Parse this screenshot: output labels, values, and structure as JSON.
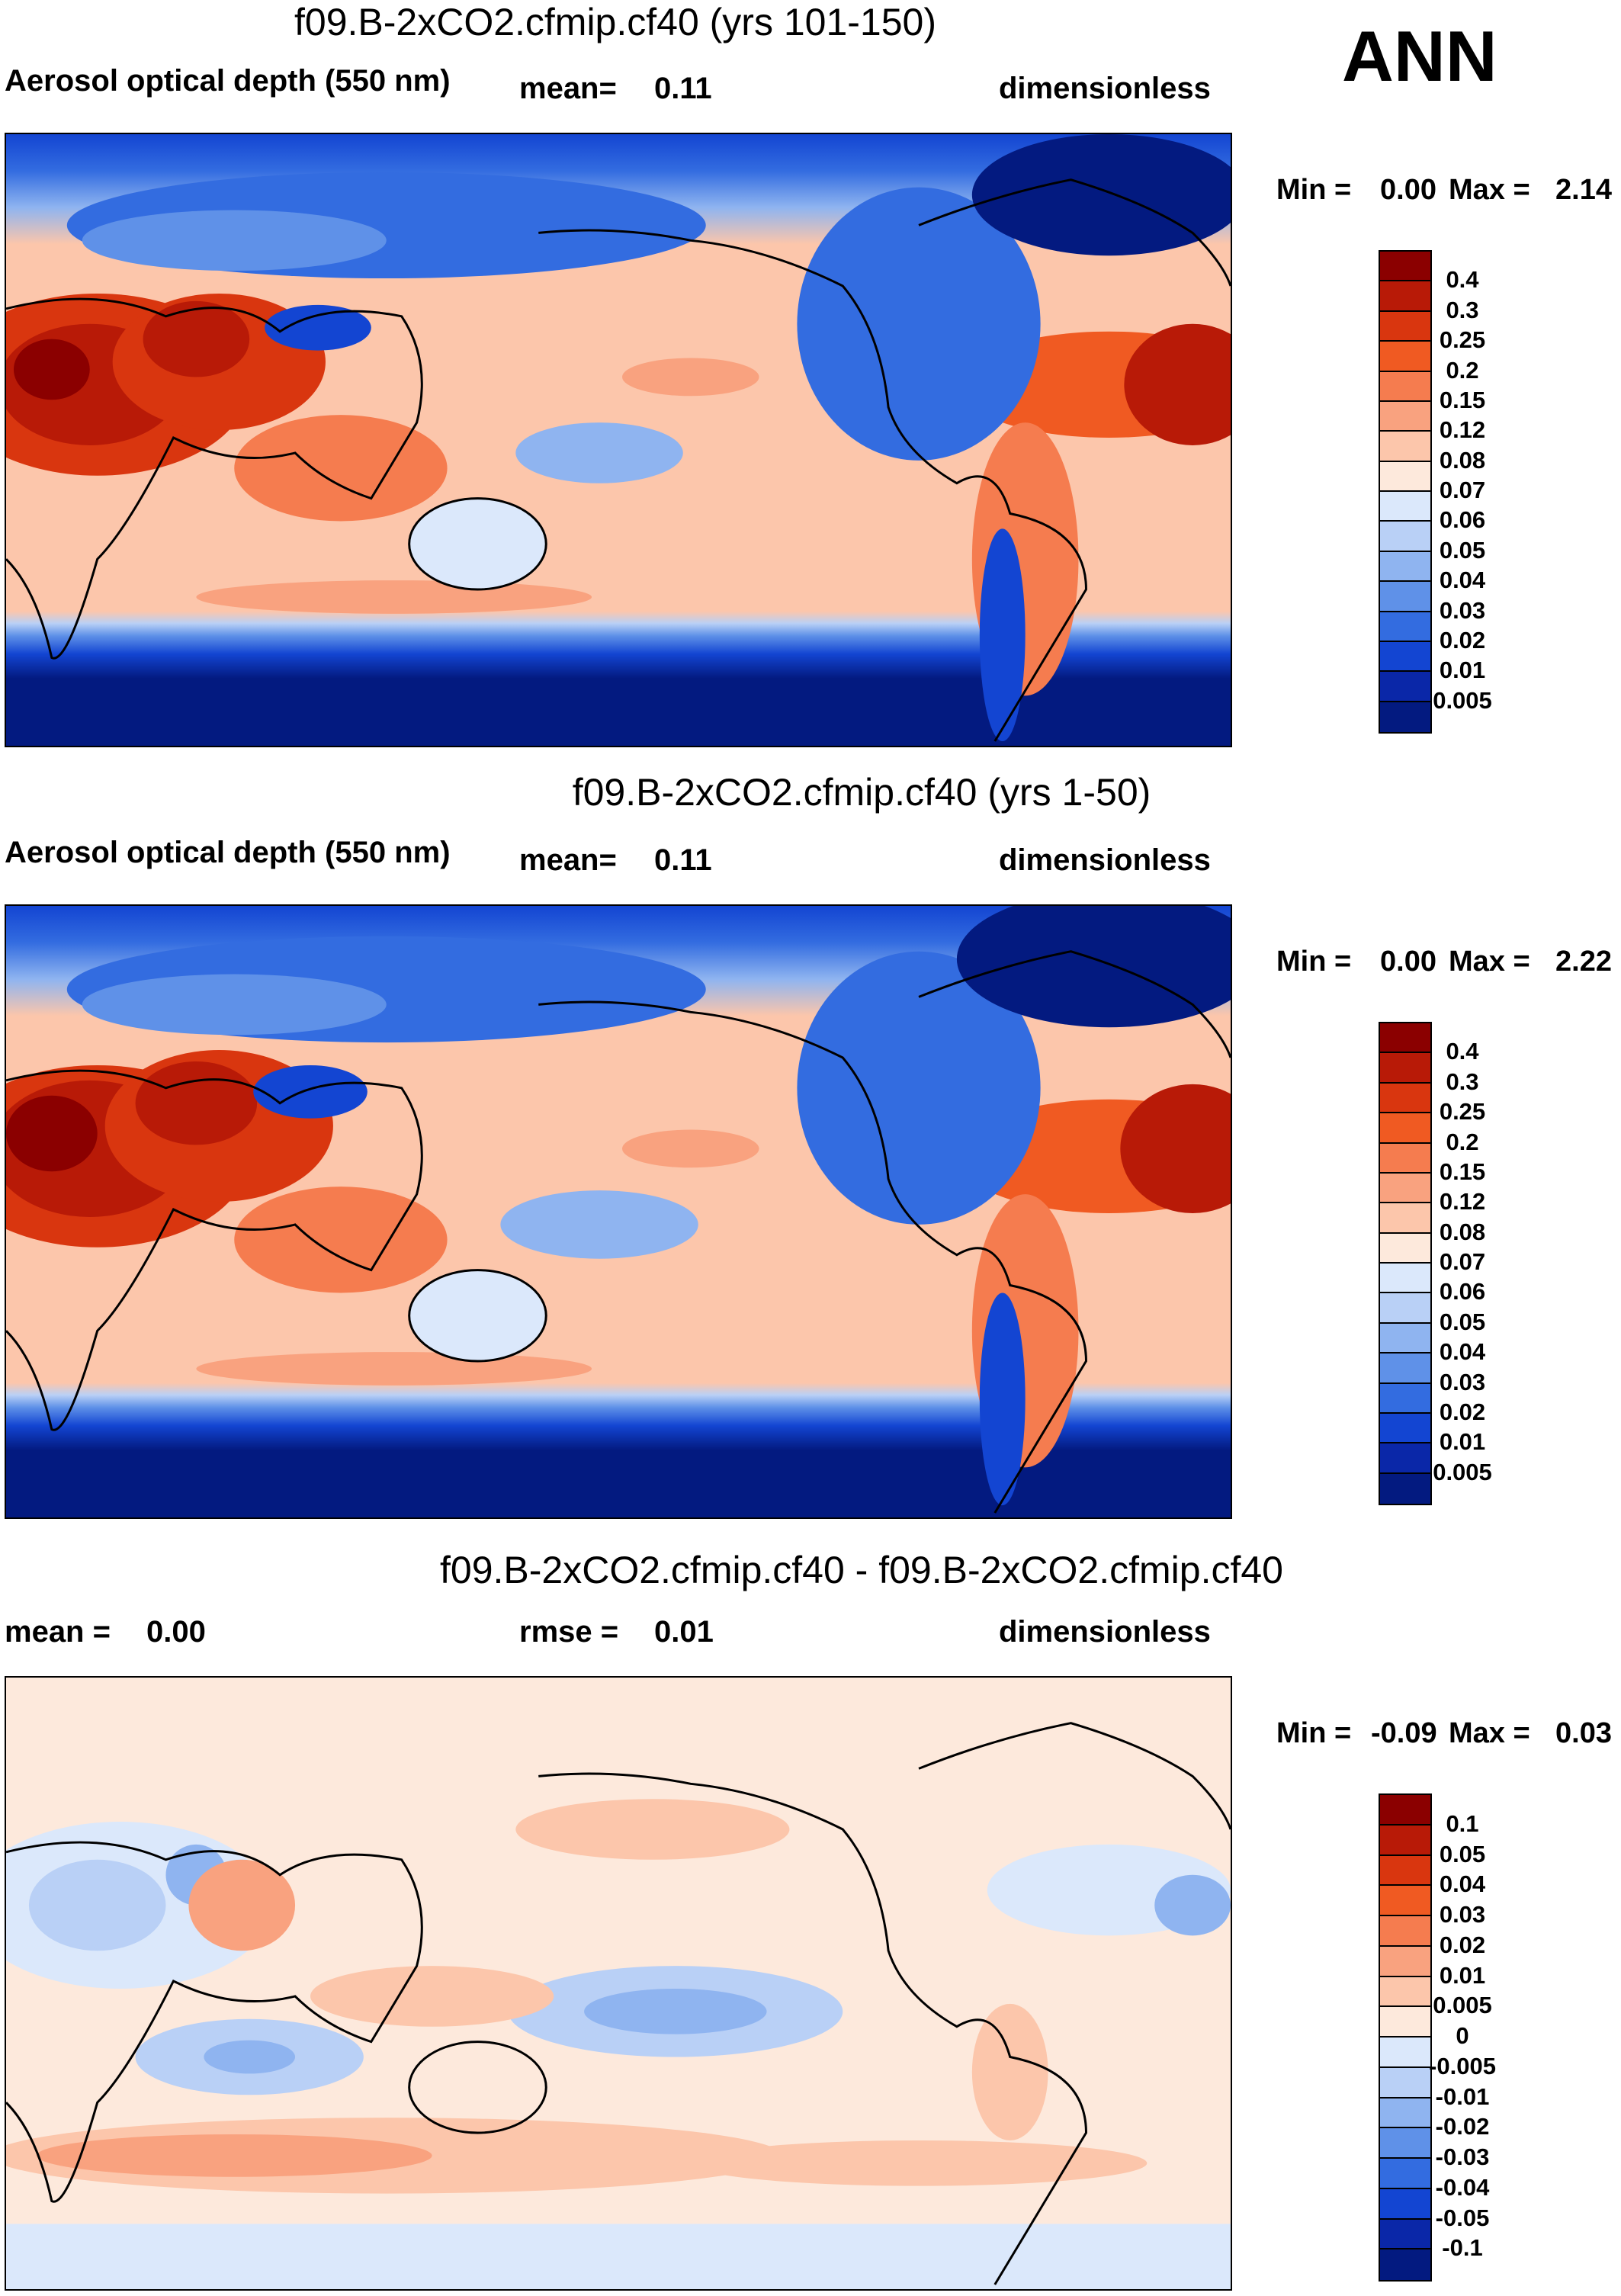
{
  "season": "ANN",
  "panels": [
    {
      "title": "f09.B-2xCO2.cfmip.cf40 (yrs 101-150)",
      "left_label": "Aerosol optical depth (550 nm)",
      "stat1_label": "mean=",
      "stat1_value": "0.11",
      "units": "dimensionless",
      "min_label": "Min =",
      "min_value": "0.00",
      "max_label": "Max =",
      "max_value": "2.14",
      "colorbar": {
        "levels": [
          "0.4",
          "0.3",
          "0.25",
          "0.2",
          "0.15",
          "0.12",
          "0.08",
          "0.07",
          "0.06",
          "0.05",
          "0.04",
          "0.03",
          "0.02",
          "0.01",
          "0.005"
        ],
        "colors": [
          "#8b0000",
          "#b81a07",
          "#d9360f",
          "#f05a22",
          "#f57c4f",
          "#f9a27f",
          "#fcc6ab",
          "#fde9dc",
          "#dbe8fb",
          "#b9d0f6",
          "#8fb4f0",
          "#5f91e8",
          "#336ce0",
          "#1345d2",
          "#0a27a8",
          "#031a80"
        ]
      }
    },
    {
      "title": "f09.B-2xCO2.cfmip.cf40 (yrs 1-50)",
      "left_label": "Aerosol optical depth (550 nm)",
      "stat1_label": "mean=",
      "stat1_value": "0.11",
      "units": "dimensionless",
      "min_label": "Min =",
      "min_value": "0.00",
      "max_label": "Max =",
      "max_value": "2.22",
      "colorbar": {
        "levels": [
          "0.4",
          "0.3",
          "0.25",
          "0.2",
          "0.15",
          "0.12",
          "0.08",
          "0.07",
          "0.06",
          "0.05",
          "0.04",
          "0.03",
          "0.02",
          "0.01",
          "0.005"
        ],
        "colors": [
          "#8b0000",
          "#b81a07",
          "#d9360f",
          "#f05a22",
          "#f57c4f",
          "#f9a27f",
          "#fcc6ab",
          "#fde9dc",
          "#dbe8fb",
          "#b9d0f6",
          "#8fb4f0",
          "#5f91e8",
          "#336ce0",
          "#1345d2",
          "#0a27a8",
          "#031a80"
        ]
      }
    },
    {
      "title": "f09.B-2xCO2.cfmip.cf40 - f09.B-2xCO2.cfmip.cf40",
      "left_label": "mean =",
      "left_value": "0.00",
      "stat1_label": "rmse =",
      "stat1_value": "0.01",
      "units": "dimensionless",
      "min_label": "Min =",
      "min_value": "-0.09",
      "max_label": "Max =",
      "max_value": "0.03",
      "colorbar": {
        "levels": [
          "0.1",
          "0.05",
          "0.04",
          "0.03",
          "0.02",
          "0.01",
          "0.005",
          "0",
          "-0.005",
          "-0.01",
          "-0.02",
          "-0.03",
          "-0.04",
          "-0.05",
          "-0.1"
        ],
        "colors": [
          "#8b0000",
          "#b81a07",
          "#d9360f",
          "#f05a22",
          "#f57c4f",
          "#f9a27f",
          "#fcc6ab",
          "#fde9dc",
          "#dbe8fb",
          "#b9d0f6",
          "#8fb4f0",
          "#5f91e8",
          "#336ce0",
          "#1345d2",
          "#0a27a8",
          "#031a80"
        ]
      }
    }
  ]
}
